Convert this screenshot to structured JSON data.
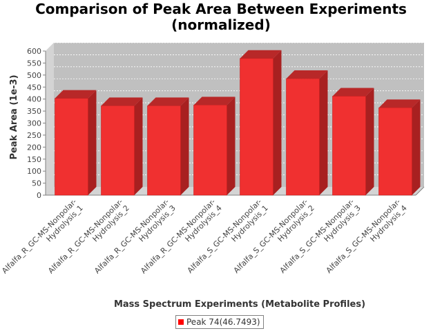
{
  "chart_data": {
    "type": "bar",
    "title_lines": [
      "Comparison of Peak Area Between Experiments",
      "(normalized)"
    ],
    "xlabel": "Mass Spectrum Experiments (Metabolite Profiles)",
    "ylabel": "Peak Area (1e-3)",
    "ylim": [
      0,
      600
    ],
    "yticks": [
      0,
      50,
      100,
      150,
      200,
      250,
      300,
      350,
      400,
      450,
      500,
      550,
      600
    ],
    "grid": true,
    "legend_position": "bottom",
    "bar_style": "3d",
    "categories": [
      [
        "Alfalfa_R_GC-MS-Nonpolar-",
        "Hydrolysis_1"
      ],
      [
        "Alfalfa_R_GC-MS-Nonpolar-",
        "Hydrolysis_2"
      ],
      [
        "Alfalfa_R_GC-MS-Nonpolar-",
        "Hydrolysis_3"
      ],
      [
        "Alfalfa_R_GC-MS-Nonpolar-",
        "Hydrolysis_4"
      ],
      [
        "Alfalfa_S_GC-MS-Nonpolar-",
        "Hydrolysis_1"
      ],
      [
        "Alfalfa_S_GC-MS-Nonpolar-",
        "Hydrolysis_2"
      ],
      [
        "Alfalfa_S_GC-MS-Nonpolar-",
        "Hydrolysis_3"
      ],
      [
        "Alfalfa_S_GC-MS-Nonpolar-",
        "Hydrolysis_4"
      ]
    ],
    "series": [
      {
        "name": "Peak 74(46.7493)",
        "color": "#ff0000",
        "values": [
          403,
          372,
          372,
          375,
          569,
          485,
          412,
          364
        ]
      }
    ]
  },
  "colors": {
    "plot_background": "#c0c0c0",
    "bar_front": "#f03030",
    "bar_top": "#b82828",
    "bar_side": "#a82020"
  }
}
